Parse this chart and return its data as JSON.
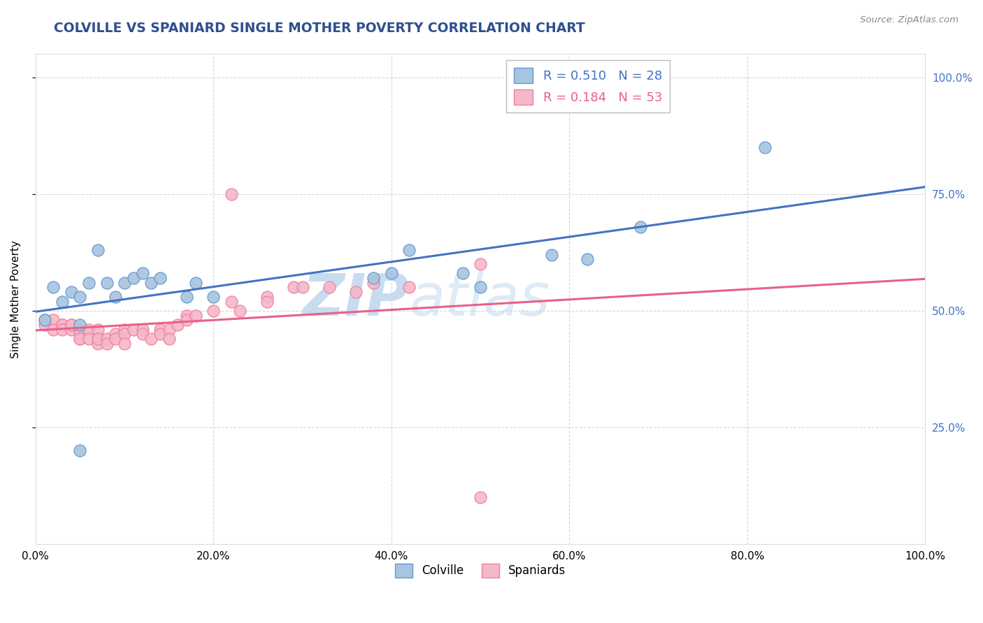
{
  "title": "COLVILLE VS SPANIARD SINGLE MOTHER POVERTY CORRELATION CHART",
  "source": "Source: ZipAtlas.com",
  "ylabel": "Single Mother Poverty",
  "colville_R": "R = 0.510",
  "colville_N": "N = 28",
  "spaniard_R": "R = 0.184",
  "spaniard_N": "N = 53",
  "colville_color": "#A8C4E0",
  "spaniard_color": "#F4B8C8",
  "colville_edge": "#6699CC",
  "spaniard_edge": "#F080A0",
  "regression_colville_color": "#4472C4",
  "regression_spaniard_color": "#E8608A",
  "colville_points_x": [
    0.01,
    0.02,
    0.03,
    0.04,
    0.05,
    0.05,
    0.06,
    0.07,
    0.08,
    0.09,
    0.1,
    0.11,
    0.12,
    0.13,
    0.14,
    0.17,
    0.18,
    0.2,
    0.38,
    0.4,
    0.42,
    0.48,
    0.5,
    0.58,
    0.62,
    0.68,
    0.82,
    0.05
  ],
  "colville_points_y": [
    0.48,
    0.55,
    0.52,
    0.54,
    0.53,
    0.47,
    0.56,
    0.63,
    0.56,
    0.53,
    0.56,
    0.57,
    0.58,
    0.56,
    0.57,
    0.53,
    0.56,
    0.53,
    0.57,
    0.58,
    0.63,
    0.58,
    0.55,
    0.62,
    0.61,
    0.68,
    0.85,
    0.2
  ],
  "spaniard_points_x": [
    0.01,
    0.01,
    0.02,
    0.02,
    0.03,
    0.03,
    0.03,
    0.04,
    0.04,
    0.04,
    0.05,
    0.05,
    0.05,
    0.05,
    0.06,
    0.06,
    0.07,
    0.07,
    0.07,
    0.07,
    0.08,
    0.08,
    0.09,
    0.09,
    0.1,
    0.1,
    0.1,
    0.11,
    0.12,
    0.12,
    0.13,
    0.14,
    0.14,
    0.15,
    0.15,
    0.16,
    0.17,
    0.17,
    0.18,
    0.2,
    0.22,
    0.23,
    0.26,
    0.26,
    0.29,
    0.3,
    0.33,
    0.36,
    0.38,
    0.42,
    0.5,
    0.5,
    0.22
  ],
  "spaniard_points_y": [
    0.48,
    0.47,
    0.48,
    0.46,
    0.47,
    0.47,
    0.46,
    0.47,
    0.46,
    0.47,
    0.46,
    0.45,
    0.44,
    0.44,
    0.46,
    0.44,
    0.46,
    0.44,
    0.43,
    0.44,
    0.44,
    0.43,
    0.45,
    0.44,
    0.46,
    0.45,
    0.43,
    0.46,
    0.46,
    0.45,
    0.44,
    0.46,
    0.45,
    0.46,
    0.44,
    0.47,
    0.49,
    0.48,
    0.49,
    0.5,
    0.52,
    0.5,
    0.53,
    0.52,
    0.55,
    0.55,
    0.55,
    0.54,
    0.56,
    0.55,
    0.1,
    0.6,
    0.75
  ],
  "ytick_labels": [
    "25.0%",
    "50.0%",
    "75.0%",
    "100.0%"
  ],
  "ytick_values": [
    0.25,
    0.5,
    0.75,
    1.0
  ],
  "xtick_labels": [
    "0.0%",
    "20.0%",
    "40.0%",
    "60.0%",
    "80.0%",
    "100.0%"
  ],
  "xtick_values": [
    0.0,
    0.2,
    0.4,
    0.6,
    0.8,
    1.0
  ],
  "xlim": [
    0.0,
    1.0
  ],
  "ylim": [
    0.0,
    1.05
  ],
  "background_color": "#FFFFFF",
  "grid_color": "#CCCCCC",
  "title_color": "#2F4F8F",
  "source_color": "#888888",
  "right_ytick_color": "#4472C4",
  "watermark_text": "ZIPatlas",
  "watermark_color": "#C8DCF0"
}
